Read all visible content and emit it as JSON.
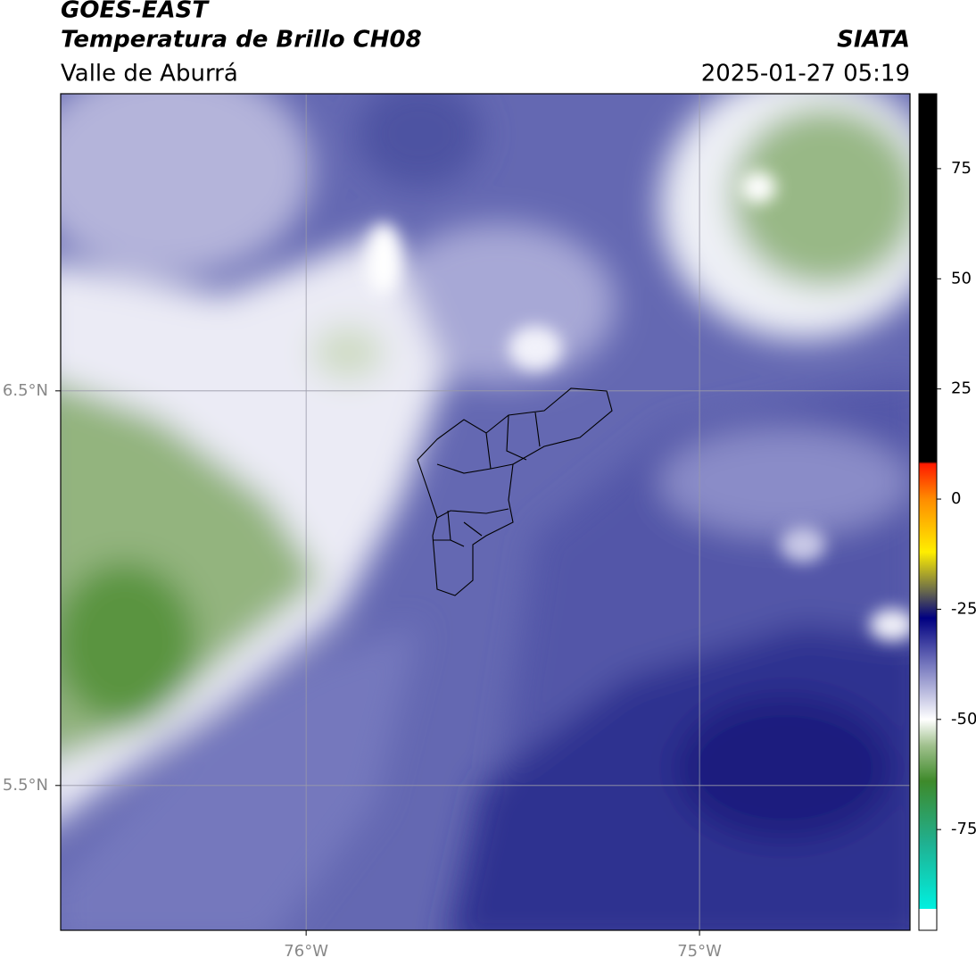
{
  "header": {
    "title": "GOES-EAST",
    "subtitle": "Temperatura de Brillo CH08",
    "region": "Valle de Aburrá",
    "source": "SIATA",
    "datetime": "2025-01-27 05:19"
  },
  "map": {
    "xlim": [
      -76.624,
      -74.465
    ],
    "ylim": [
      5.133,
      7.253
    ],
    "xticks": [
      {
        "value": -76,
        "label": "76°W"
      },
      {
        "value": -75,
        "label": "75°W"
      }
    ],
    "yticks": [
      {
        "value": 6.5,
        "label": "6.5°N"
      },
      {
        "value": 5.5,
        "label": "5.5°N"
      }
    ],
    "grid": true
  },
  "colorbar": {
    "lim": [
      -93,
      92
    ],
    "ticks": [
      75,
      50,
      25,
      0,
      -25,
      -50,
      -75
    ],
    "under_color": "#ffffff",
    "stops": [
      {
        "value": 92,
        "color": "#000000"
      },
      {
        "value": 8.5,
        "color": "#000000"
      },
      {
        "value": 8,
        "color": "#ff1a00"
      },
      {
        "value": 0,
        "color": "#ff8c00"
      },
      {
        "value": -12,
        "color": "#ffee00"
      },
      {
        "value": -20,
        "color": "#777744"
      },
      {
        "value": -27,
        "color": "#000080"
      },
      {
        "value": -38,
        "color": "#7a7cc0"
      },
      {
        "value": -50,
        "color": "#ffffff"
      },
      {
        "value": -56,
        "color": "#9fc08c"
      },
      {
        "value": -64,
        "color": "#3e8a2a"
      },
      {
        "value": -78,
        "color": "#20b090"
      },
      {
        "value": -93,
        "color": "#00f0e0"
      }
    ]
  }
}
